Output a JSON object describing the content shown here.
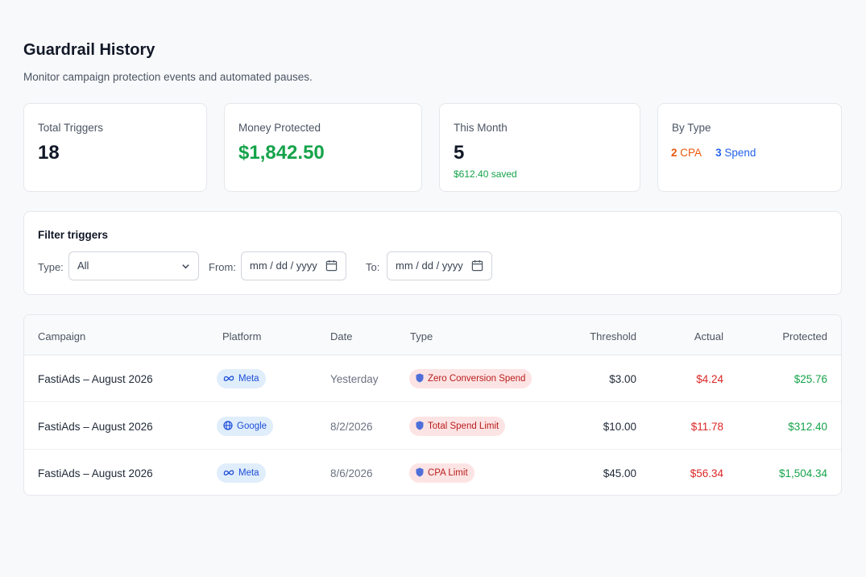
{
  "header": {
    "title": "Guardrail History",
    "subtitle": "Monitor campaign protection events and automated pauses."
  },
  "stats": {
    "total_triggers": {
      "label": "Total Triggers",
      "value": "18"
    },
    "money_protected": {
      "label": "Money Protected",
      "value": "$1,842.50"
    },
    "this_month": {
      "label": "This Month",
      "value": "5",
      "sub": "$612.40 saved"
    },
    "by_type": {
      "label": "By Type",
      "cpa_count": "2",
      "cpa_label": "CPA",
      "spend_count": "3",
      "spend_label": "Spend"
    }
  },
  "filter": {
    "title": "Filter triggers",
    "type_label": "Type:",
    "type_value": "All",
    "from_label": "From:",
    "from_placeholder": "mm / dd / yyyy",
    "to_label": "To:",
    "to_placeholder": "mm / dd / yyyy"
  },
  "table": {
    "columns": [
      "Campaign",
      "Platform",
      "Date",
      "Type",
      "Threshold",
      "Actual",
      "Protected"
    ],
    "rows": [
      {
        "campaign": "FastiAds – August 2026",
        "platform": "Meta",
        "platform_icon": "meta-icon",
        "date": "Yesterday",
        "type": "Zero Conversion Spend",
        "threshold": "$3.00",
        "actual": "$4.24",
        "protected": "$25.76"
      },
      {
        "campaign": "FastiAds – August 2026",
        "platform": "Google",
        "platform_icon": "globe-icon",
        "date": "8/2/2026",
        "type": "Total Spend Limit",
        "threshold": "$10.00",
        "actual": "$11.78",
        "protected": "$312.40"
      },
      {
        "campaign": "FastiAds – August 2026",
        "platform": "Meta",
        "platform_icon": "meta-icon",
        "date": "8/6/2026",
        "type": "CPA Limit",
        "threshold": "$45.00",
        "actual": "$56.34",
        "protected": "$1,504.34"
      }
    ]
  },
  "colors": {
    "positive": "#16a34a",
    "negative": "#dc2626",
    "cpa": "#ea580c",
    "spend": "#2563eb"
  }
}
